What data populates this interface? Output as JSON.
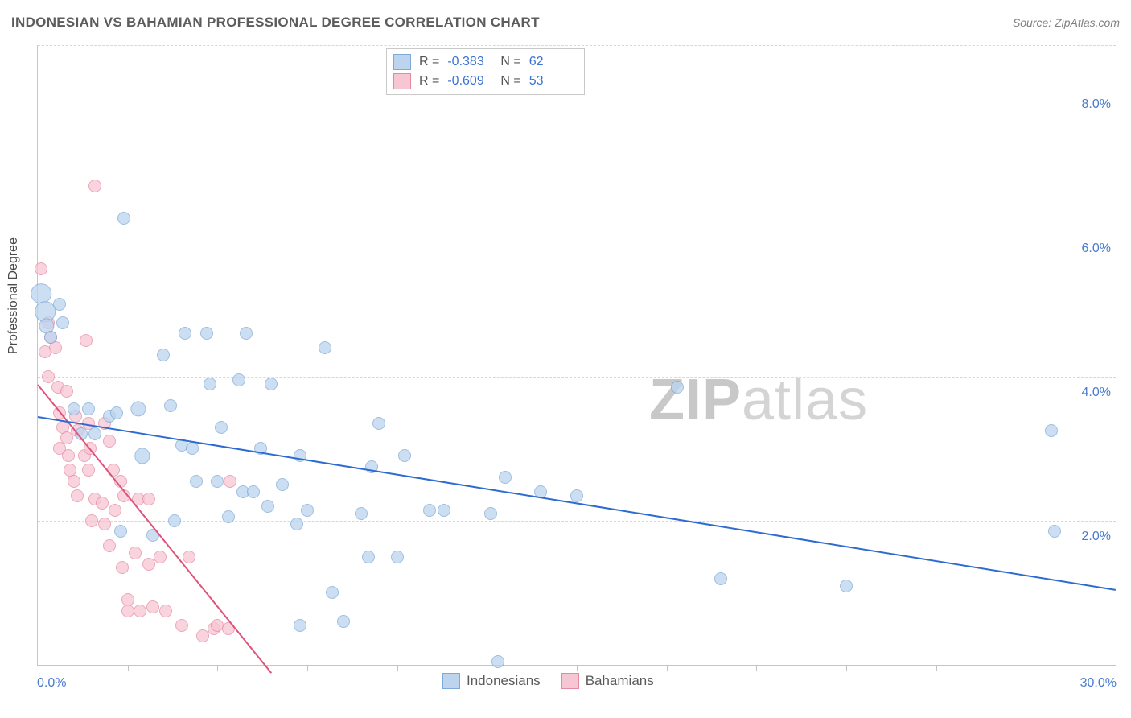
{
  "title": "INDONESIAN VS BAHAMIAN PROFESSIONAL DEGREE CORRELATION CHART",
  "source_label": "Source: ZipAtlas.com",
  "ylabel": "Professional Degree",
  "watermark": {
    "zip": "ZIP",
    "atlas": "atlas"
  },
  "chart": {
    "type": "scatter",
    "xlim": [
      0,
      30
    ],
    "ylim": [
      0,
      8.6
    ],
    "x_axis_min_label": "0.0%",
    "x_axis_max_label": "30.0%",
    "ytick_values": [
      2.0,
      4.0,
      6.0,
      8.0
    ],
    "ytick_labels": [
      "2.0%",
      "4.0%",
      "6.0%",
      "8.0%"
    ],
    "xtick_values": [
      2.5,
      5,
      7.5,
      10,
      12.5,
      15,
      17.5,
      20,
      22.5,
      25,
      27.5
    ],
    "background_color": "#ffffff",
    "grid_color": "#d7d7d7",
    "axis_color": "#c5c5c5",
    "tick_label_color": "#4a7bd0",
    "tick_fontsize": 16,
    "title_fontsize": 17,
    "title_color": "#5c5c5c",
    "ylabel_fontsize": 16,
    "marker_base_size": 16,
    "series": [
      {
        "name": "Indonesians",
        "fill": "#bcd4ee",
        "stroke": "#7fa9d8",
        "opacity": 0.75,
        "reg_color": "#2e6bd1",
        "reg_width": 2,
        "reg_line": {
          "x1": 0,
          "y1": 3.45,
          "x2": 30,
          "y2": 1.05
        },
        "R": "-0.383",
        "N": "62",
        "points": [
          {
            "x": 0.1,
            "y": 5.15,
            "s": 1.6
          },
          {
            "x": 0.2,
            "y": 4.9,
            "s": 1.6
          },
          {
            "x": 0.25,
            "y": 4.7,
            "s": 1.2
          },
          {
            "x": 0.6,
            "y": 5.0,
            "s": 1.0
          },
          {
            "x": 0.7,
            "y": 4.75,
            "s": 1.0
          },
          {
            "x": 0.35,
            "y": 4.55,
            "s": 1.0
          },
          {
            "x": 2.4,
            "y": 6.2,
            "s": 1.0
          },
          {
            "x": 1.0,
            "y": 3.55,
            "s": 1.0
          },
          {
            "x": 1.4,
            "y": 3.55,
            "s": 1.0
          },
          {
            "x": 1.2,
            "y": 3.2,
            "s": 1.0
          },
          {
            "x": 1.6,
            "y": 3.2,
            "s": 1.0
          },
          {
            "x": 2.0,
            "y": 3.45,
            "s": 1.0
          },
          {
            "x": 2.2,
            "y": 3.5,
            "s": 1.0
          },
          {
            "x": 2.8,
            "y": 3.55,
            "s": 1.2
          },
          {
            "x": 2.9,
            "y": 2.9,
            "s": 1.2
          },
          {
            "x": 3.5,
            "y": 4.3,
            "s": 1.0
          },
          {
            "x": 3.7,
            "y": 3.6,
            "s": 1.0
          },
          {
            "x": 4.0,
            "y": 3.05,
            "s": 1.0
          },
          {
            "x": 4.1,
            "y": 4.6,
            "s": 1.0
          },
          {
            "x": 4.3,
            "y": 3.0,
            "s": 1.0
          },
          {
            "x": 4.7,
            "y": 4.6,
            "s": 1.0
          },
          {
            "x": 4.8,
            "y": 3.9,
            "s": 1.0
          },
          {
            "x": 5.0,
            "y": 2.55,
            "s": 1.0
          },
          {
            "x": 5.3,
            "y": 2.05,
            "s": 1.0
          },
          {
            "x": 5.1,
            "y": 3.3,
            "s": 1.0
          },
          {
            "x": 5.6,
            "y": 3.95,
            "s": 1.0
          },
          {
            "x": 5.7,
            "y": 2.4,
            "s": 1.0
          },
          {
            "x": 5.8,
            "y": 4.6,
            "s": 1.0
          },
          {
            "x": 6.0,
            "y": 2.4,
            "s": 1.0
          },
          {
            "x": 6.2,
            "y": 3.0,
            "s": 1.0
          },
          {
            "x": 6.4,
            "y": 2.2,
            "s": 1.0
          },
          {
            "x": 6.5,
            "y": 3.9,
            "s": 1.0
          },
          {
            "x": 6.8,
            "y": 2.5,
            "s": 1.0
          },
          {
            "x": 7.2,
            "y": 1.95,
            "s": 1.0
          },
          {
            "x": 7.3,
            "y": 2.9,
            "s": 1.0
          },
          {
            "x": 7.3,
            "y": 0.55,
            "s": 1.0
          },
          {
            "x": 7.5,
            "y": 2.15,
            "s": 1.0
          },
          {
            "x": 8.0,
            "y": 4.4,
            "s": 1.0
          },
          {
            "x": 8.2,
            "y": 1.0,
            "s": 1.0
          },
          {
            "x": 8.5,
            "y": 0.6,
            "s": 1.0
          },
          {
            "x": 9.0,
            "y": 2.1,
            "s": 1.0
          },
          {
            "x": 9.2,
            "y": 1.5,
            "s": 1.0
          },
          {
            "x": 9.3,
            "y": 2.75,
            "s": 1.0
          },
          {
            "x": 9.5,
            "y": 3.35,
            "s": 1.0
          },
          {
            "x": 10.0,
            "y": 1.5,
            "s": 1.0
          },
          {
            "x": 10.2,
            "y": 2.9,
            "s": 1.0
          },
          {
            "x": 10.9,
            "y": 2.15,
            "s": 1.0
          },
          {
            "x": 11.3,
            "y": 2.15,
            "s": 1.0
          },
          {
            "x": 12.6,
            "y": 2.1,
            "s": 1.0
          },
          {
            "x": 12.8,
            "y": 0.05,
            "s": 1.0
          },
          {
            "x": 13.0,
            "y": 2.6,
            "s": 1.0
          },
          {
            "x": 14.0,
            "y": 2.4,
            "s": 1.0
          },
          {
            "x": 15.0,
            "y": 2.35,
            "s": 1.0
          },
          {
            "x": 28.2,
            "y": 3.25,
            "s": 1.0
          },
          {
            "x": 28.3,
            "y": 1.85,
            "s": 1.0
          },
          {
            "x": 22.5,
            "y": 1.1,
            "s": 1.0
          },
          {
            "x": 19.0,
            "y": 1.2,
            "s": 1.0
          },
          {
            "x": 17.8,
            "y": 3.85,
            "s": 1.0
          },
          {
            "x": 2.3,
            "y": 1.85,
            "s": 1.0
          },
          {
            "x": 3.2,
            "y": 1.8,
            "s": 1.0
          },
          {
            "x": 3.8,
            "y": 2.0,
            "s": 1.0
          },
          {
            "x": 4.4,
            "y": 2.55,
            "s": 1.0
          }
        ]
      },
      {
        "name": "Bahamians",
        "fill": "#f7c6d3",
        "stroke": "#e68aa4",
        "opacity": 0.75,
        "reg_color": "#e0527a",
        "reg_width": 2,
        "reg_line": {
          "x1": 0,
          "y1": 3.9,
          "x2": 6.5,
          "y2": -0.1
        },
        "R": "-0.609",
        "N": "53",
        "points": [
          {
            "x": 0.1,
            "y": 5.5,
            "s": 1.0
          },
          {
            "x": 0.3,
            "y": 4.75,
            "s": 1.0
          },
          {
            "x": 0.35,
            "y": 4.55,
            "s": 1.0
          },
          {
            "x": 0.5,
            "y": 4.4,
            "s": 1.0
          },
          {
            "x": 0.2,
            "y": 4.35,
            "s": 1.0
          },
          {
            "x": 0.3,
            "y": 4.0,
            "s": 1.0
          },
          {
            "x": 0.55,
            "y": 3.85,
            "s": 1.0
          },
          {
            "x": 0.8,
            "y": 3.8,
            "s": 1.0
          },
          {
            "x": 0.6,
            "y": 3.5,
            "s": 1.0
          },
          {
            "x": 0.7,
            "y": 3.3,
            "s": 1.0
          },
          {
            "x": 0.8,
            "y": 3.15,
            "s": 1.0
          },
          {
            "x": 0.6,
            "y": 3.0,
            "s": 1.0
          },
          {
            "x": 0.85,
            "y": 2.9,
            "s": 1.0
          },
          {
            "x": 0.9,
            "y": 2.7,
            "s": 1.0
          },
          {
            "x": 1.0,
            "y": 2.55,
            "s": 1.0
          },
          {
            "x": 1.05,
            "y": 3.45,
            "s": 1.0
          },
          {
            "x": 1.1,
            "y": 3.25,
            "s": 1.0
          },
          {
            "x": 1.1,
            "y": 2.35,
            "s": 1.0
          },
          {
            "x": 1.3,
            "y": 2.9,
            "s": 1.0
          },
          {
            "x": 1.35,
            "y": 4.5,
            "s": 1.0
          },
          {
            "x": 1.4,
            "y": 2.7,
            "s": 1.0
          },
          {
            "x": 1.4,
            "y": 3.35,
            "s": 1.0
          },
          {
            "x": 1.45,
            "y": 3.0,
            "s": 1.0
          },
          {
            "x": 1.5,
            "y": 2.0,
            "s": 1.0
          },
          {
            "x": 1.6,
            "y": 6.65,
            "s": 1.0
          },
          {
            "x": 1.6,
            "y": 2.3,
            "s": 1.0
          },
          {
            "x": 1.8,
            "y": 2.25,
            "s": 1.0
          },
          {
            "x": 1.85,
            "y": 1.95,
            "s": 1.0
          },
          {
            "x": 1.85,
            "y": 3.35,
            "s": 1.0
          },
          {
            "x": 2.0,
            "y": 3.1,
            "s": 1.0
          },
          {
            "x": 2.0,
            "y": 1.65,
            "s": 1.0
          },
          {
            "x": 2.1,
            "y": 2.7,
            "s": 1.0
          },
          {
            "x": 2.15,
            "y": 2.15,
            "s": 1.0
          },
          {
            "x": 2.3,
            "y": 2.55,
            "s": 1.0
          },
          {
            "x": 2.35,
            "y": 1.35,
            "s": 1.0
          },
          {
            "x": 2.4,
            "y": 2.35,
            "s": 1.0
          },
          {
            "x": 2.5,
            "y": 0.9,
            "s": 1.0
          },
          {
            "x": 2.5,
            "y": 0.75,
            "s": 1.0
          },
          {
            "x": 2.7,
            "y": 1.55,
            "s": 1.0
          },
          {
            "x": 2.8,
            "y": 2.3,
            "s": 1.0
          },
          {
            "x": 2.85,
            "y": 0.75,
            "s": 1.0
          },
          {
            "x": 3.1,
            "y": 2.3,
            "s": 1.0
          },
          {
            "x": 3.1,
            "y": 1.4,
            "s": 1.0
          },
          {
            "x": 3.2,
            "y": 0.8,
            "s": 1.0
          },
          {
            "x": 3.4,
            "y": 1.5,
            "s": 1.0
          },
          {
            "x": 3.55,
            "y": 0.75,
            "s": 1.0
          },
          {
            "x": 4.0,
            "y": 0.55,
            "s": 1.0
          },
          {
            "x": 4.2,
            "y": 1.5,
            "s": 1.0
          },
          {
            "x": 4.6,
            "y": 0.4,
            "s": 1.0
          },
          {
            "x": 4.9,
            "y": 0.5,
            "s": 1.0
          },
          {
            "x": 5.0,
            "y": 0.55,
            "s": 1.0
          },
          {
            "x": 5.3,
            "y": 0.5,
            "s": 1.0
          },
          {
            "x": 5.35,
            "y": 2.55,
            "s": 1.0
          }
        ]
      }
    ]
  },
  "stats_box": {
    "rows": [
      {
        "swatch_fill": "#bcd4ee",
        "swatch_stroke": "#7fa9d8",
        "r_label": "R =",
        "r_val": "-0.383",
        "n_label": "N =",
        "n_val": "62"
      },
      {
        "swatch_fill": "#f7c6d3",
        "swatch_stroke": "#e68aa4",
        "r_label": "R =",
        "r_val": "-0.609",
        "n_label": "N =",
        "n_val": "53"
      }
    ]
  },
  "bottom_legend": {
    "items": [
      {
        "swatch_fill": "#bcd4ee",
        "swatch_stroke": "#7fa9d8",
        "label": "Indonesians"
      },
      {
        "swatch_fill": "#f7c6d3",
        "swatch_stroke": "#e68aa4",
        "label": "Bahamians"
      }
    ]
  }
}
